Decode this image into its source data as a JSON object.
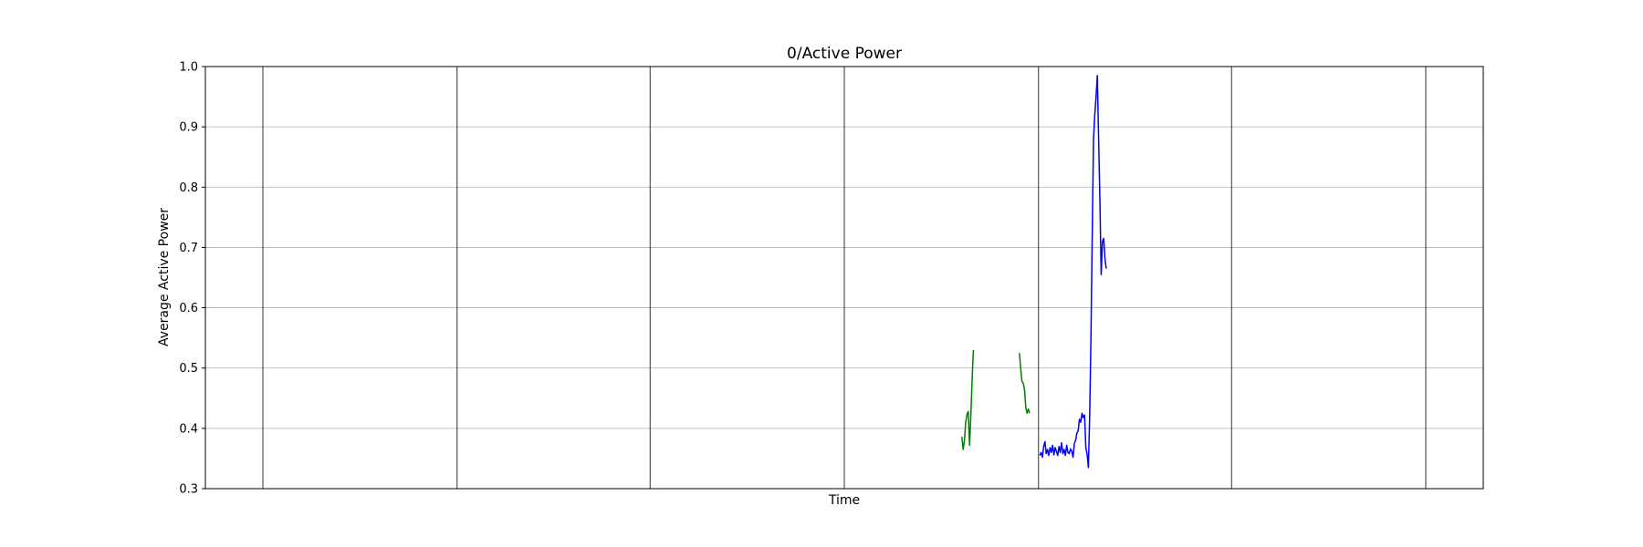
{
  "chart_data": {
    "type": "line",
    "title": "0/Active Power",
    "xlabel": "Time",
    "ylabel": "Average Active Power",
    "ylim": [
      0.3,
      1.0
    ],
    "yticks": [
      0.3,
      0.4,
      0.5,
      0.6,
      0.7,
      0.8,
      0.9,
      1.0
    ],
    "ytick_labels": [
      "0.3",
      "0.4",
      "0.5",
      "0.6",
      "0.7",
      "0.8",
      "0.9",
      "1.0"
    ],
    "xlim": [
      0,
      1000
    ],
    "xgrid": [
      45,
      197,
      348,
      500,
      652,
      803,
      955
    ],
    "grid": true,
    "series": [
      {
        "color": "#008000",
        "segments": [
          [
            [
              592,
              0.386
            ],
            [
              593,
              0.365
            ],
            [
              594,
              0.38
            ],
            [
              595,
              0.41
            ],
            [
              596,
              0.423
            ],
            [
              597,
              0.428
            ],
            [
              598,
              0.372
            ],
            [
              599,
              0.42
            ],
            [
              600,
              0.48
            ],
            [
              601,
              0.53
            ]
          ],
          [
            [
              637,
              0.525
            ],
            [
              638,
              0.5
            ],
            [
              639,
              0.478
            ],
            [
              640,
              0.475
            ],
            [
              641,
              0.465
            ],
            [
              642,
              0.435
            ],
            [
              643,
              0.425
            ],
            [
              644,
              0.432
            ],
            [
              645,
              0.425
            ]
          ]
        ]
      },
      {
        "color": "#0000ff",
        "segments": [
          [
            [
              653,
              0.355
            ],
            [
              654,
              0.36
            ],
            [
              655,
              0.352
            ],
            [
              656,
              0.37
            ],
            [
              657,
              0.378
            ],
            [
              658,
              0.358
            ],
            [
              659,
              0.365
            ],
            [
              660,
              0.355
            ],
            [
              661,
              0.368
            ],
            [
              662,
              0.36
            ],
            [
              663,
              0.372
            ],
            [
              664,
              0.356
            ],
            [
              665,
              0.368
            ],
            [
              666,
              0.362
            ],
            [
              667,
              0.355
            ],
            [
              668,
              0.37
            ],
            [
              669,
              0.36
            ],
            [
              670,
              0.376
            ],
            [
              671,
              0.358
            ],
            [
              672,
              0.365
            ],
            [
              673,
              0.355
            ],
            [
              674,
              0.372
            ],
            [
              675,
              0.36
            ],
            [
              676,
              0.358
            ],
            [
              677,
              0.366
            ],
            [
              678,
              0.362
            ],
            [
              679,
              0.352
            ],
            [
              680,
              0.375
            ],
            [
              681,
              0.38
            ],
            [
              682,
              0.392
            ],
            [
              683,
              0.396
            ],
            [
              684,
              0.415
            ],
            [
              685,
              0.41
            ],
            [
              686,
              0.425
            ],
            [
              687,
              0.418
            ],
            [
              688,
              0.422
            ],
            [
              689,
              0.368
            ],
            [
              690,
              0.357
            ],
            [
              691,
              0.335
            ],
            [
              692,
              0.42
            ],
            [
              693,
              0.55
            ],
            [
              694,
              0.72
            ],
            [
              695,
              0.88
            ],
            [
              696,
              0.92
            ],
            [
              697,
              0.95
            ],
            [
              698,
              0.985
            ],
            [
              699,
              0.88
            ],
            [
              700,
              0.78
            ],
            [
              701,
              0.655
            ],
            [
              702,
              0.71
            ],
            [
              703,
              0.715
            ],
            [
              704,
              0.68
            ],
            [
              705,
              0.665
            ]
          ]
        ]
      }
    ]
  }
}
